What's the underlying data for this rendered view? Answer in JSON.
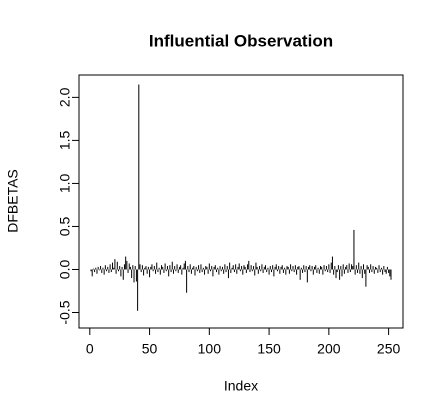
{
  "chart_data": {
    "type": "needle",
    "title": "Influential Observation",
    "x_label": "Index",
    "y_label": "DFBETAS",
    "x": [
      1,
      2,
      3,
      4,
      5,
      6,
      7,
      8,
      9,
      10,
      11,
      12,
      13,
      14,
      15,
      16,
      17,
      18,
      19,
      20,
      21,
      22,
      23,
      24,
      25,
      26,
      27,
      28,
      29,
      30,
      31,
      32,
      33,
      34,
      35,
      36,
      37,
      38,
      39,
      40,
      41,
      42,
      43,
      44,
      45,
      46,
      47,
      48,
      49,
      50,
      51,
      52,
      53,
      54,
      55,
      56,
      57,
      58,
      59,
      60,
      61,
      62,
      63,
      64,
      65,
      66,
      67,
      68,
      69,
      70,
      71,
      72,
      73,
      74,
      75,
      76,
      77,
      78,
      79,
      80,
      81,
      82,
      83,
      84,
      85,
      86,
      87,
      88,
      89,
      90,
      91,
      92,
      93,
      94,
      95,
      96,
      97,
      98,
      99,
      100,
      101,
      102,
      103,
      104,
      105,
      106,
      107,
      108,
      109,
      110,
      111,
      112,
      113,
      114,
      115,
      116,
      117,
      118,
      119,
      120,
      121,
      122,
      123,
      124,
      125,
      126,
      127,
      128,
      129,
      130,
      131,
      132,
      133,
      134,
      135,
      136,
      137,
      138,
      139,
      140,
      141,
      142,
      143,
      144,
      145,
      146,
      147,
      148,
      149,
      150,
      151,
      152,
      153,
      154,
      155,
      156,
      157,
      158,
      159,
      160,
      161,
      162,
      163,
      164,
      165,
      166,
      167,
      168,
      169,
      170,
      171,
      172,
      173,
      174,
      175,
      176,
      177,
      178,
      179,
      180,
      181,
      182,
      183,
      184,
      185,
      186,
      187,
      188,
      189,
      190,
      191,
      192,
      193,
      194,
      195,
      196,
      197,
      198,
      199,
      200,
      201,
      202,
      203,
      204,
      205,
      206,
      207,
      208,
      209,
      210,
      211,
      212,
      213,
      214,
      215,
      216,
      217,
      218,
      219,
      220,
      221,
      222,
      223,
      224,
      225,
      226,
      227,
      228,
      229,
      230,
      231,
      232,
      233,
      234,
      235,
      236,
      237,
      238,
      239,
      240,
      241,
      242,
      243,
      244,
      245,
      246,
      247,
      248,
      249,
      250,
      251,
      252
    ],
    "values": [
      -0.02,
      -0.08,
      0.01,
      -0.03,
      0.02,
      -0.05,
      0.03,
      -0.01,
      0.04,
      -0.04,
      0.02,
      -0.06,
      0.05,
      -0.02,
      0.03,
      -0.04,
      0.06,
      -0.03,
      0.08,
      0.02,
      0.12,
      -0.05,
      0.09,
      -0.02,
      0.04,
      -0.08,
      0.03,
      -0.12,
      0.06,
      0.15,
      0.1,
      -0.04,
      0.07,
      0.03,
      -0.1,
      0.05,
      -0.15,
      0.04,
      -0.14,
      -0.48,
      2.15,
      0.06,
      -0.03,
      0.05,
      -0.07,
      0.02,
      0.04,
      -0.05,
      0.03,
      -0.09,
      0.03,
      0.06,
      -0.02,
      0.04,
      -0.05,
      0.08,
      -0.03,
      0.02,
      -0.06,
      0.05,
      0.03,
      -0.04,
      0.07,
      -0.02,
      0.04,
      -0.08,
      0.05,
      -0.03,
      0.09,
      -0.05,
      0.04,
      -0.02,
      0.06,
      -0.04,
      0.03,
      0.05,
      -0.06,
      0.02,
      0.07,
      0.1,
      -0.27,
      0.04,
      -0.03,
      0.06,
      -0.05,
      0.02,
      0.04,
      -0.07,
      0.03,
      -0.02,
      0.05,
      -0.04,
      0.06,
      -0.03,
      0.02,
      -0.06,
      0.04,
      0.03,
      -0.05,
      0.07,
      -0.02,
      0.04,
      -0.08,
      0.03,
      0.05,
      -0.03,
      0.02,
      -0.06,
      0.04,
      -0.02,
      0.03,
      -0.05,
      0.06,
      -0.03,
      0.04,
      -0.1,
      0.08,
      -0.04,
      0.02,
      0.05,
      -0.03,
      0.06,
      -0.05,
      0.03,
      0.07,
      -0.02,
      0.04,
      -0.06,
      0.05,
      0.03,
      -0.04,
      0.06,
      0.1,
      -0.03,
      0.05,
      -0.02,
      0.04,
      -0.07,
      0.08,
      0.03,
      -0.05,
      0.04,
      -0.02,
      0.06,
      -0.04,
      0.03,
      0.05,
      -0.03,
      0.02,
      -0.06,
      0.04,
      -0.03,
      0.05,
      -0.08,
      0.03,
      0.06,
      -0.02,
      0.04,
      -0.05,
      0.03,
      0.05,
      -0.04,
      0.02,
      -0.06,
      0.04,
      0.03,
      -0.05,
      0.06,
      -0.02,
      0.04,
      -0.03,
      0.05,
      -0.06,
      0.03,
      0.04,
      -0.12,
      0.02,
      -0.04,
      0.05,
      -0.03,
      0.04,
      -0.15,
      0.03,
      0.05,
      -0.02,
      0.04,
      -0.06,
      0.03,
      0.05,
      -0.04,
      0.02,
      -0.05,
      0.04,
      0.03,
      -0.06,
      0.05,
      -0.02,
      0.04,
      -0.03,
      0.06,
      -0.04,
      0.08,
      0.15,
      -0.06,
      0.04,
      -0.1,
      -0.03,
      0.05,
      -0.12,
      0.04,
      -0.08,
      0.06,
      -0.05,
      0.03,
      0.05,
      -0.04,
      0.07,
      -0.03,
      0.06,
      0.04,
      0.46,
      -0.06,
      0.05,
      -0.04,
      0.08,
      -0.05,
      0.04,
      -0.1,
      0.06,
      -0.05,
      -0.2,
      0.05,
      0.03,
      -0.04,
      0.06,
      -0.03,
      0.04,
      -0.05,
      0.03,
      0.02,
      -0.04,
      0.05,
      -0.03,
      0.02,
      -0.06,
      0.04,
      -0.03,
      -0.05,
      0.03,
      -0.04,
      -0.08,
      -0.12
    ],
    "color": "#000000",
    "xlim": [
      -9.04,
      262.04
    ],
    "xticks": [
      0,
      50,
      100,
      150,
      200,
      250
    ],
    "ylim": [
      -0.68,
      2.26
    ],
    "yticks": [
      -0.5,
      {
        "value": 0,
        "label": "0.0"
      },
      0.5,
      {
        "value": 1,
        "label": "1.0"
      },
      1.5,
      {
        "value": 2,
        "label": "2.0"
      }
    ],
    "grid": false
  }
}
